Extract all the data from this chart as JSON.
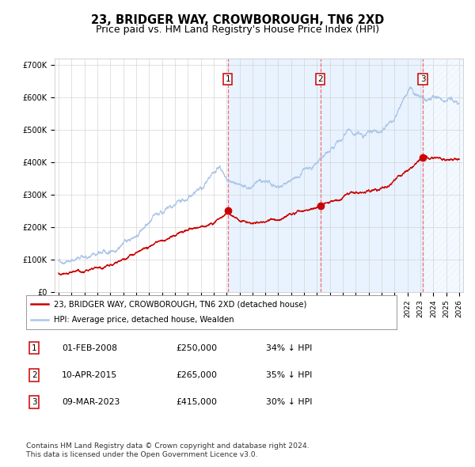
{
  "title": "23, BRIDGER WAY, CROWBOROUGH, TN6 2XD",
  "subtitle": "Price paid vs. HM Land Registry's House Price Index (HPI)",
  "x_start_year": 1995,
  "x_end_year": 2026,
  "y_min": 0,
  "y_max": 700000,
  "y_ticks": [
    0,
    100000,
    200000,
    300000,
    400000,
    500000,
    600000,
    700000
  ],
  "y_tick_labels": [
    "£0",
    "£100K",
    "£200K",
    "£300K",
    "£400K",
    "£500K",
    "£600K",
    "£700K"
  ],
  "hpi_color": "#aec6e8",
  "price_color": "#cc0000",
  "sale_marker_color": "#cc0000",
  "vline_color": "#ff5555",
  "shade_color": "#ddeeff",
  "sales": [
    {
      "label": "1",
      "date_num": 2008.09,
      "price": 250000,
      "date_str": "01-FEB-2008",
      "pct": "34% ↓ HPI"
    },
    {
      "label": "2",
      "date_num": 2015.27,
      "price": 265000,
      "date_str": "10-APR-2015",
      "pct": "35% ↓ HPI"
    },
    {
      "label": "3",
      "date_num": 2023.18,
      "price": 415000,
      "date_str": "09-MAR-2023",
      "pct": "30% ↓ HPI"
    }
  ],
  "legend_label_price": "23, BRIDGER WAY, CROWBOROUGH, TN6 2XD (detached house)",
  "legend_label_hpi": "HPI: Average price, detached house, Wealden",
  "footnote1": "Contains HM Land Registry data © Crown copyright and database right 2024.",
  "footnote2": "This data is licensed under the Open Government Licence v3.0.",
  "bg_color": "#ffffff",
  "grid_color": "#cccccc",
  "title_fontsize": 10.5,
  "subtitle_fontsize": 9,
  "axis_fontsize": 7
}
